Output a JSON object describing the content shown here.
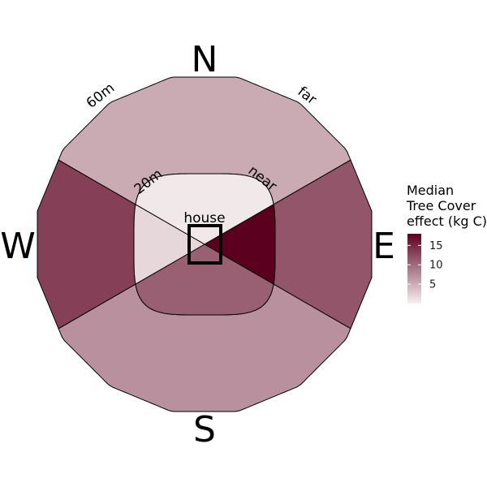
{
  "chart_data": {
    "type": "polar-sector-map",
    "compass": {
      "north": "N",
      "south": "S",
      "east": "E",
      "west": "W"
    },
    "ring_labels": {
      "outer_left": "60m",
      "outer_right": "far",
      "inner_left": "20m",
      "inner_right": "near"
    },
    "center_label": "house",
    "legend": {
      "title_lines": [
        "Median",
        "Tree Cover",
        "effect (kg C)"
      ],
      "ticks": [
        5,
        10,
        15
      ],
      "range": [
        0,
        18
      ],
      "color_low": "#f6f0f0",
      "color_high": "#5c0020"
    },
    "sectors": [
      {
        "ring": "far",
        "direction": "N",
        "value": 5.2
      },
      {
        "ring": "far",
        "direction": "E",
        "value": 11.6
      },
      {
        "ring": "far",
        "direction": "S",
        "value": 7.1
      },
      {
        "ring": "far",
        "direction": "W",
        "value": 13.2
      },
      {
        "ring": "near",
        "direction": "N",
        "value": 0.6
      },
      {
        "ring": "near",
        "direction": "E",
        "value": 18.0
      },
      {
        "ring": "near",
        "direction": "S",
        "value": 10.9
      },
      {
        "ring": "near",
        "direction": "W",
        "value": 1.9
      }
    ]
  }
}
